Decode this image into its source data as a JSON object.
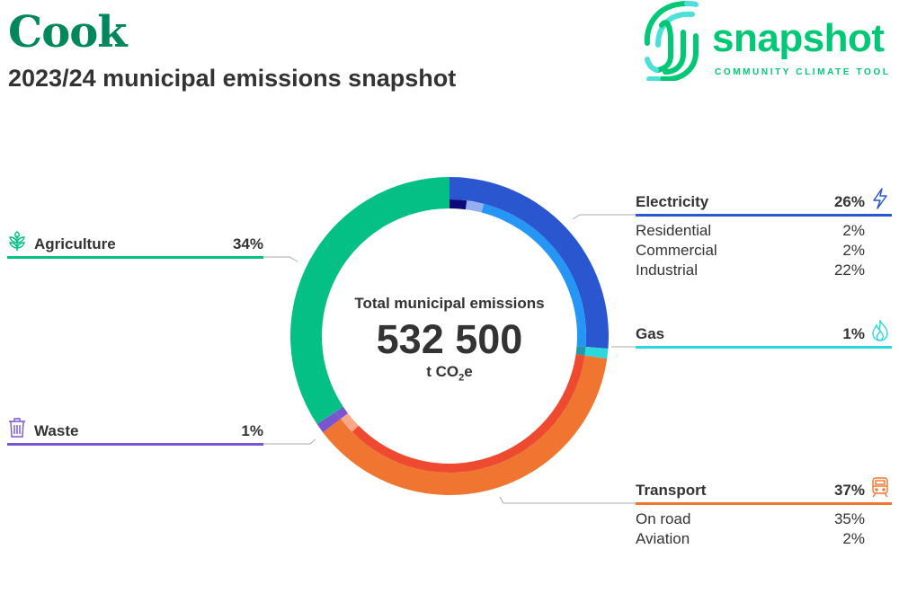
{
  "header": {
    "title": "Cook",
    "subtitle": "2023/24 municipal emissions snapshot"
  },
  "logo": {
    "word": "snapshot",
    "tagline": "COMMUNITY CLIMATE TOOL"
  },
  "center": {
    "label": "Total municipal emissions",
    "value": "532 500",
    "unit_main": "t CO",
    "unit_sub": "2",
    "unit_end": "e"
  },
  "labels": {
    "electricity": {
      "name": "Electricity",
      "pct": "26%",
      "subs": [
        {
          "name": "Residential",
          "pct": "2%"
        },
        {
          "name": "Commercial",
          "pct": "2%"
        },
        {
          "name": "Industrial",
          "pct": "22%"
        }
      ]
    },
    "gas": {
      "name": "Gas",
      "pct": "1%"
    },
    "transport": {
      "name": "Transport",
      "pct": "37%",
      "subs": [
        {
          "name": "On road",
          "pct": "35%"
        },
        {
          "name": "Aviation",
          "pct": "2%"
        }
      ]
    },
    "agriculture": {
      "name": "Agriculture",
      "pct": "34%"
    },
    "waste": {
      "name": "Waste",
      "pct": "1%"
    }
  },
  "chart_data": {
    "type": "pie",
    "title": "Total municipal emissions",
    "total": 532500,
    "unit": "t CO2e",
    "sectors": [
      {
        "name": "Electricity",
        "value": 26,
        "color": "#2a57cf",
        "icon": "lightning-icon",
        "subs": [
          {
            "name": "Residential",
            "value": 2,
            "color": "#0a0a78"
          },
          {
            "name": "Commercial",
            "value": 2,
            "color": "#94aef0"
          },
          {
            "name": "Industrial",
            "value": 22,
            "color": "#2596f5"
          }
        ]
      },
      {
        "name": "Gas",
        "value": 1,
        "color": "#2bd9dc",
        "icon": "flame-icon",
        "subs": [
          {
            "name": "Gas",
            "value": 1,
            "color": "#1e9aa8"
          }
        ]
      },
      {
        "name": "Transport",
        "value": 37,
        "color": "#f07530",
        "icon": "train-icon",
        "subs": [
          {
            "name": "On road",
            "value": 35,
            "color": "#ee4a30"
          },
          {
            "name": "Aviation",
            "value": 2,
            "color": "#f8a888"
          }
        ]
      },
      {
        "name": "Waste",
        "value": 1,
        "color": "#7a55d0",
        "icon": "trash-icon",
        "subs": [
          {
            "name": "Waste",
            "value": 1,
            "color": "#7a55d0"
          }
        ]
      },
      {
        "name": "Agriculture",
        "value": 34,
        "color": "#05c085",
        "icon": "plant-icon",
        "subs": []
      }
    ]
  }
}
